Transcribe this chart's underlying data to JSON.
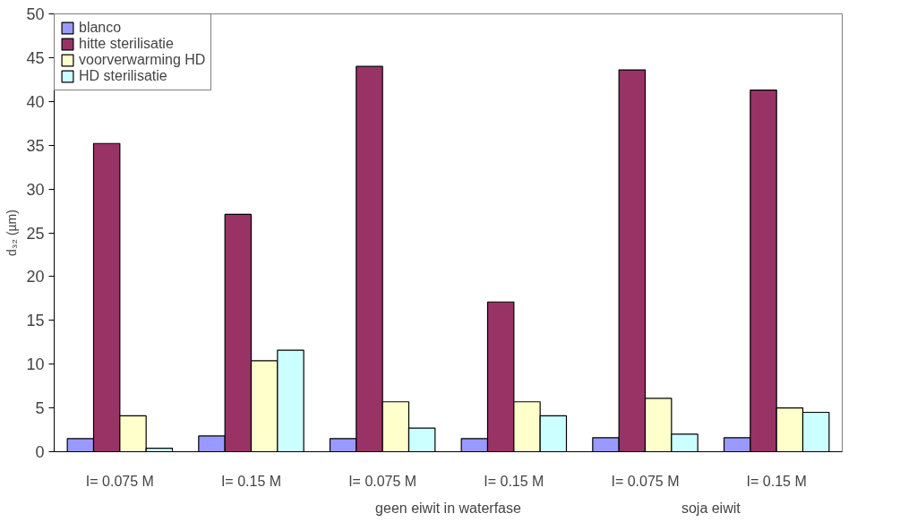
{
  "chart_data": {
    "type": "bar",
    "ylabel": "d₃₂ (µm)",
    "categories": [
      "I= 0.075 M",
      "I= 0.15 M",
      "I= 0.075 M",
      "I= 0.15 M",
      "I= 0.075 M",
      "I= 0.15 M"
    ],
    "series": [
      {
        "name": "blanco",
        "color": "#9999ff",
        "values": [
          1.5,
          1.8,
          1.5,
          1.5,
          1.6,
          1.6
        ]
      },
      {
        "name": "hitte sterilisatie",
        "color": "#993366",
        "values": [
          35.2,
          27.1,
          44.0,
          17.1,
          43.6,
          41.3
        ]
      },
      {
        "name": "voorverwarming HD",
        "color": "#ffffcc",
        "values": [
          4.1,
          10.4,
          5.7,
          5.7,
          6.1,
          5.0
        ]
      },
      {
        "name": "HD sterilisatie",
        "color": "#ccffff",
        "values": [
          0.4,
          11.6,
          2.7,
          4.1,
          2.0,
          4.5
        ]
      }
    ],
    "ylim": [
      0,
      50
    ],
    "yticks": [
      0,
      5,
      10,
      15,
      20,
      25,
      30,
      35,
      40,
      45,
      50
    ],
    "legend": "top left",
    "annotations": [
      "geen eiwit in waterfase",
      "soja eiwit"
    ]
  }
}
